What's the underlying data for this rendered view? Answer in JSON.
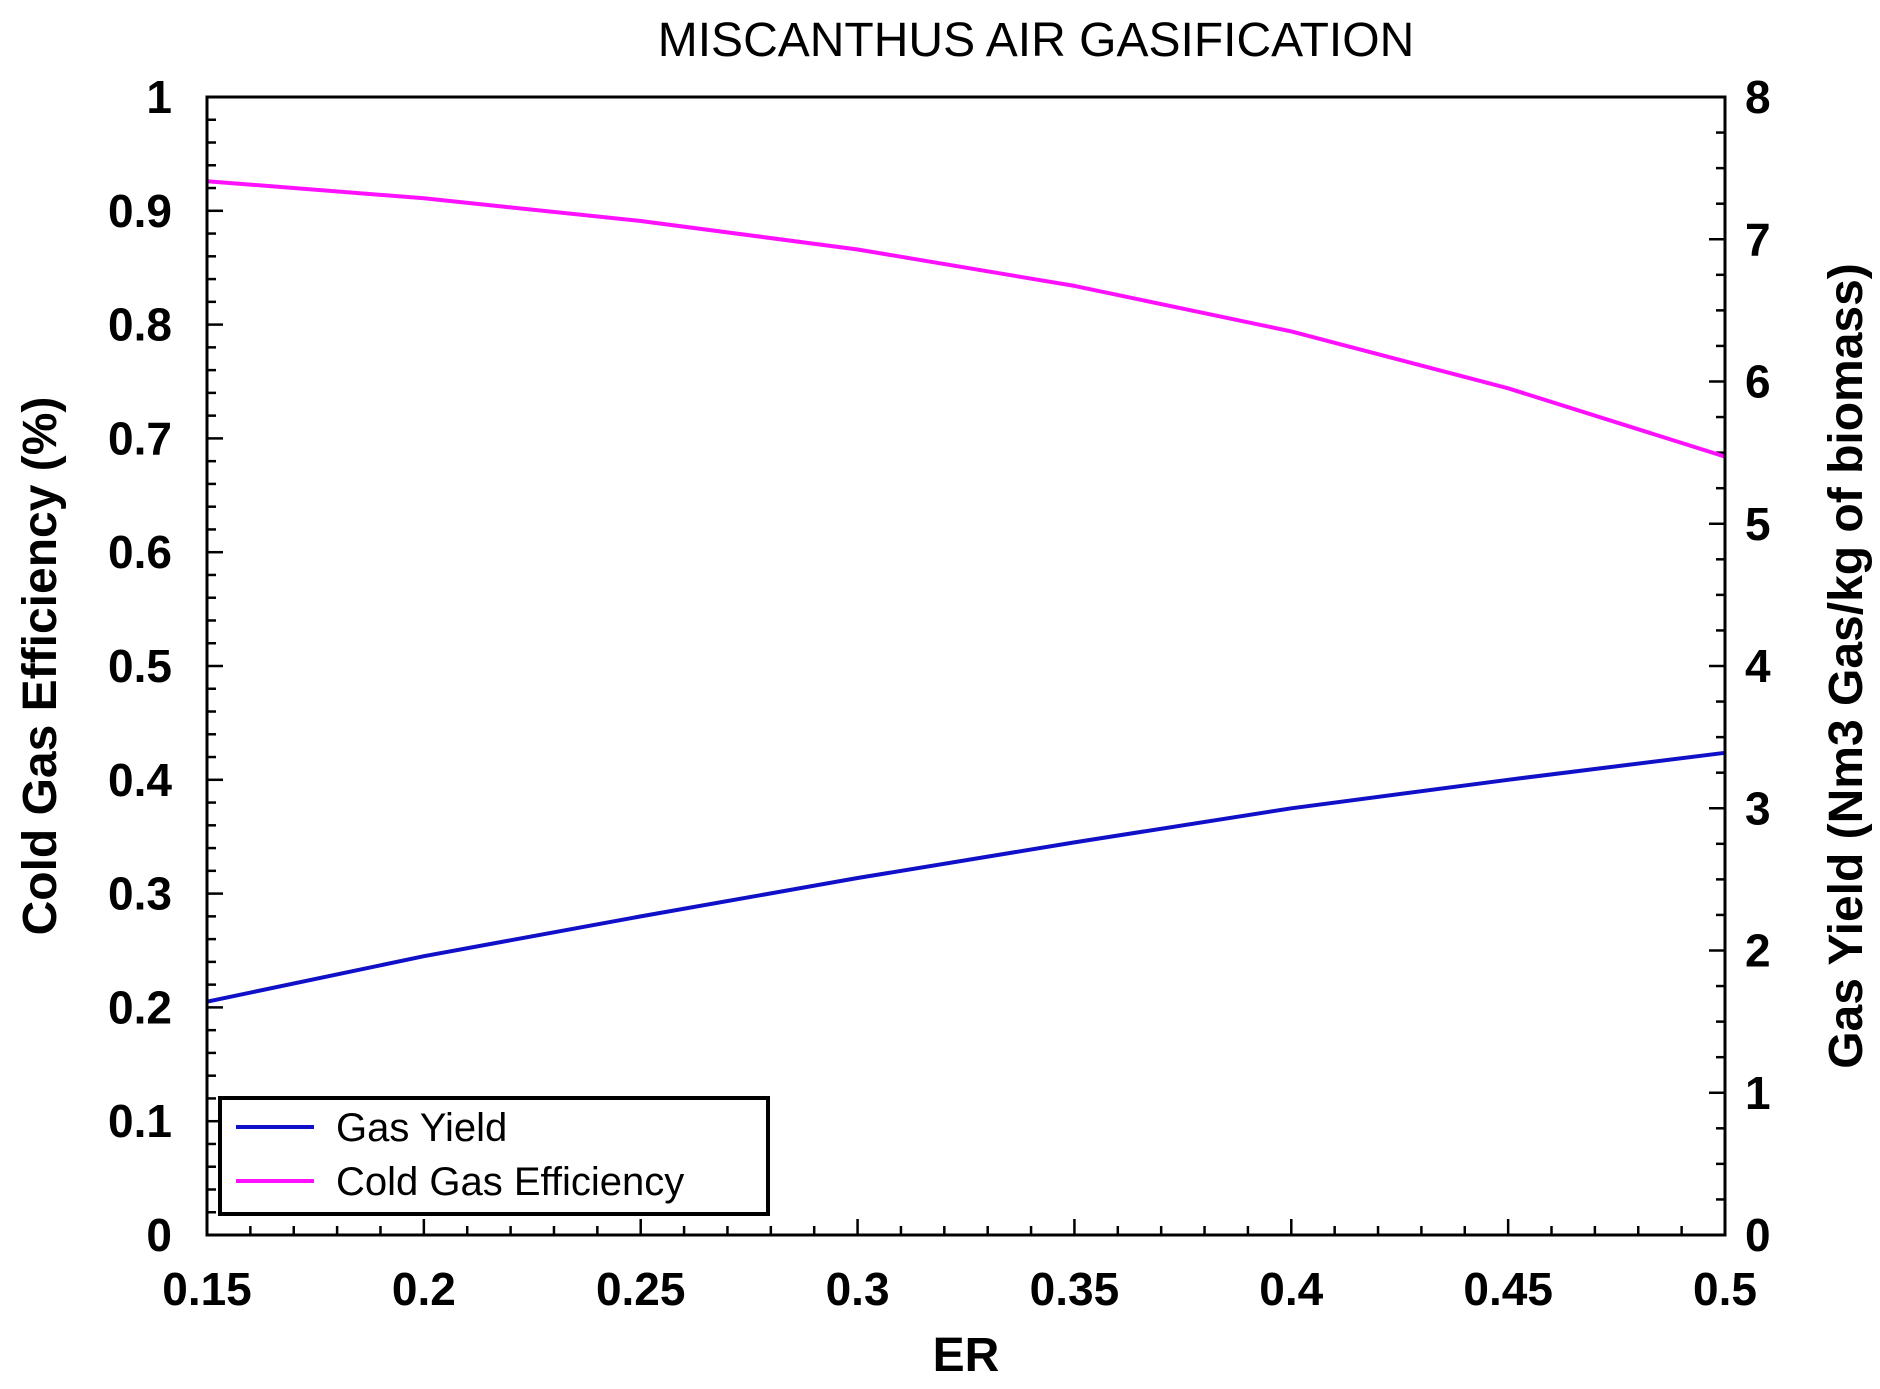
{
  "chart_data": {
    "type": "line",
    "title": "MISCANTHUS AIR GASIFICATION",
    "xlabel": "ER",
    "ylabel_left": "Cold Gas Efficiency (%)",
    "ylabel_right": "Gas Yield (Nm3 Gas/kg of biomass)",
    "xlim": [
      0.15,
      0.5
    ],
    "ylim_left": [
      0,
      1
    ],
    "ylim_right": [
      0,
      8
    ],
    "x_ticks": [
      "0.15",
      "0.2",
      "0.25",
      "0.3",
      "0.35",
      "0.4",
      "0.45",
      "0.5"
    ],
    "y_left_ticks": [
      "0",
      "0.1",
      "0.2",
      "0.3",
      "0.4",
      "0.5",
      "0.6",
      "0.7",
      "0.8",
      "0.9",
      "1"
    ],
    "y_right_ticks": [
      "0",
      "1",
      "2",
      "3",
      "4",
      "5",
      "6",
      "7",
      "8"
    ],
    "legend_position": "bottom-left",
    "grid": false,
    "series": [
      {
        "name": "Gas Yield",
        "axis": "right",
        "color": "#1010c8",
        "x": [
          0.15,
          0.2,
          0.25,
          0.3,
          0.35,
          0.4,
          0.45,
          0.5
        ],
        "y": [
          1.64,
          1.96,
          2.24,
          2.51,
          2.76,
          3.0,
          3.2,
          3.39
        ]
      },
      {
        "name": "Cold Gas Efficiency",
        "axis": "left",
        "color": "#ff10ff",
        "x": [
          0.15,
          0.2,
          0.25,
          0.3,
          0.35,
          0.4,
          0.45,
          0.5
        ],
        "y": [
          0.926,
          0.911,
          0.891,
          0.866,
          0.834,
          0.794,
          0.744,
          0.684
        ]
      }
    ]
  }
}
